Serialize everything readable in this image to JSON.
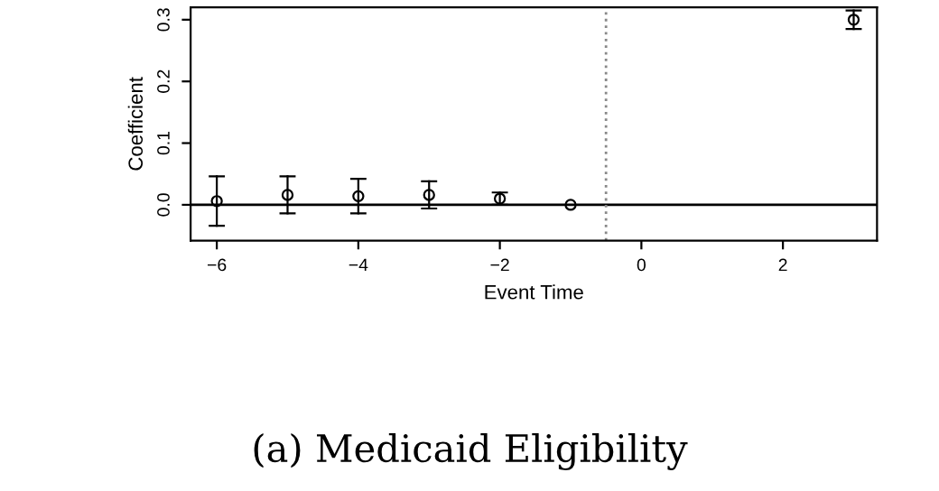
{
  "chart_data": {
    "type": "scatter",
    "xlabel": "Event Time",
    "ylabel": "Coefficient",
    "annotations": [
      "(a) Medicaid Eligibility"
    ],
    "x": [
      -6,
      -5,
      -4,
      -3,
      -2,
      -1,
      3
    ],
    "values": [
      0.006,
      0.016,
      0.014,
      0.016,
      0.01,
      0.0,
      0.3
    ],
    "errors": [
      0.04,
      0.03,
      0.028,
      0.022,
      0.01,
      null,
      [
        0.285,
        0.315
      ]
    ],
    "color": "#000000",
    "marker": "circle",
    "xlim": [
      -6.37,
      3.33
    ],
    "xticks": [
      {
        "value": -6,
        "label": "−6"
      },
      {
        "value": -4,
        "label": "−4"
      },
      {
        "value": -2,
        "label": "−2"
      },
      0,
      2
    ],
    "ylim": [
      -0.058,
      0.32
    ],
    "yticks": [
      {
        "value": 0,
        "label": "0.0"
      },
      0.1,
      0.2,
      0.3
    ],
    "ref_lines": [
      {
        "axis": "y",
        "value": 0,
        "color": "#000000",
        "line_style": "solid"
      },
      {
        "axis": "x",
        "value": -0.5,
        "color": "#888888",
        "line_style": "dotted"
      }
    ],
    "grid": false,
    "legend": false
  }
}
